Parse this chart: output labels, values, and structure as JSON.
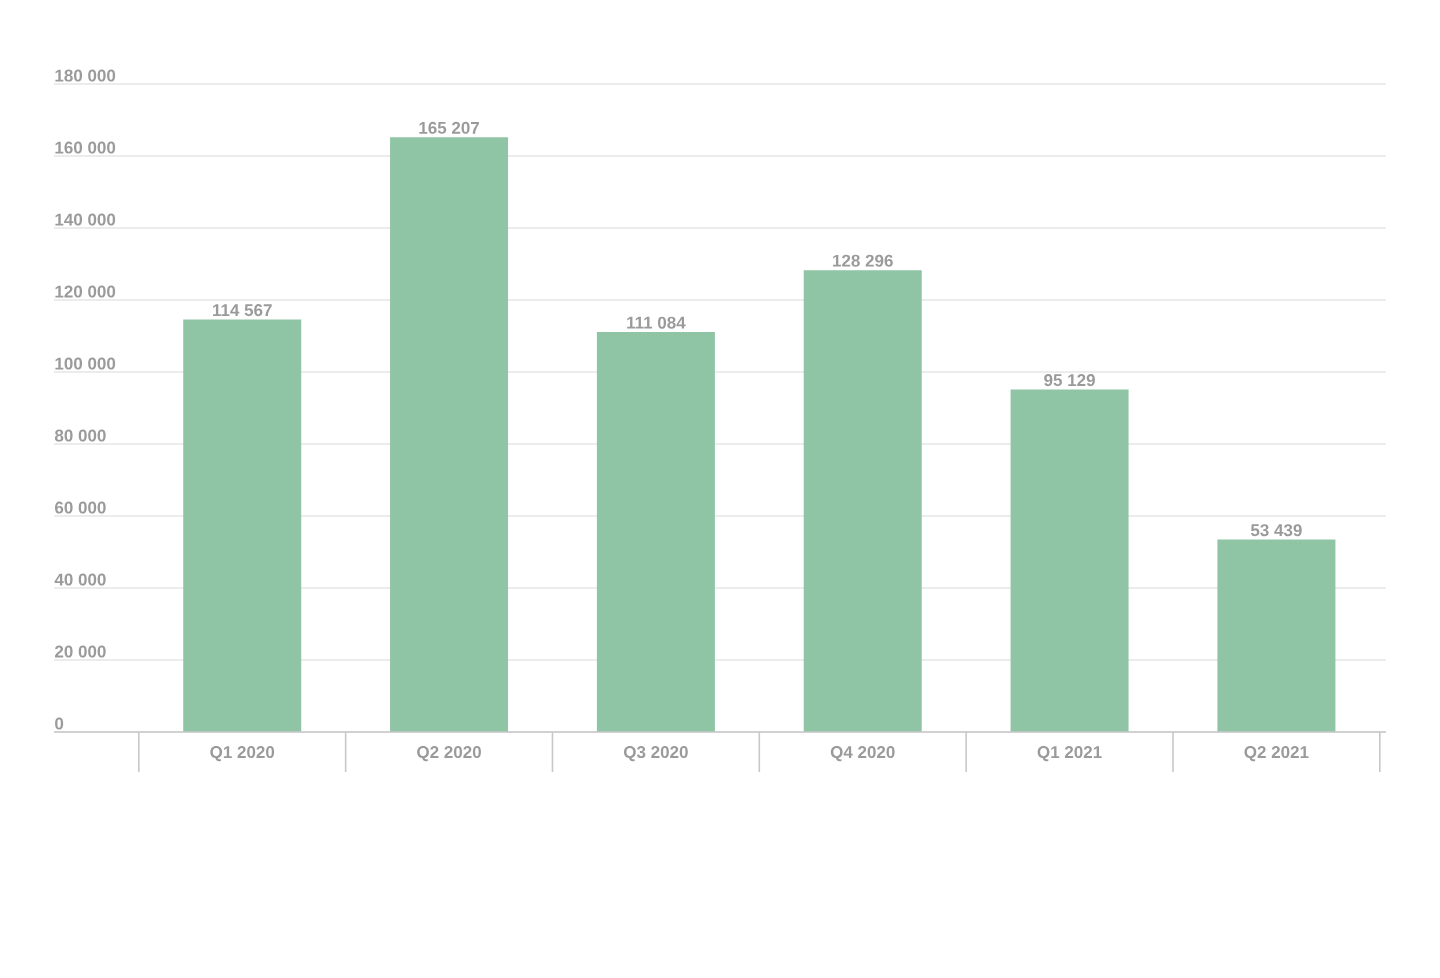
{
  "chart_data": {
    "type": "bar",
    "categories": [
      "Q1 2020",
      "Q2 2020",
      "Q3 2020",
      "Q4 2020",
      "Q1 2021",
      "Q2 2021"
    ],
    "values": [
      114567,
      165207,
      111084,
      128296,
      95129,
      53439
    ],
    "value_labels": [
      "114 567",
      "165 207",
      "111 084",
      "128 296",
      "95 129",
      "53 439"
    ],
    "color": "#8fc4a5",
    "ylim": [
      0,
      180000
    ],
    "yticks": [
      {
        "value": 0,
        "label": "0"
      },
      {
        "value": 20000,
        "label": "20 000"
      },
      {
        "value": 40000,
        "label": "40 000"
      },
      {
        "value": 60000,
        "label": "60 000"
      },
      {
        "value": 80000,
        "label": "80 000"
      },
      {
        "value": 100000,
        "label": "100 000"
      },
      {
        "value": 120000,
        "label": "120 000"
      },
      {
        "value": 140000,
        "label": "140 000"
      },
      {
        "value": 160000,
        "label": "160 000"
      },
      {
        "value": 180000,
        "label": "180 000"
      }
    ],
    "grid": "y"
  }
}
